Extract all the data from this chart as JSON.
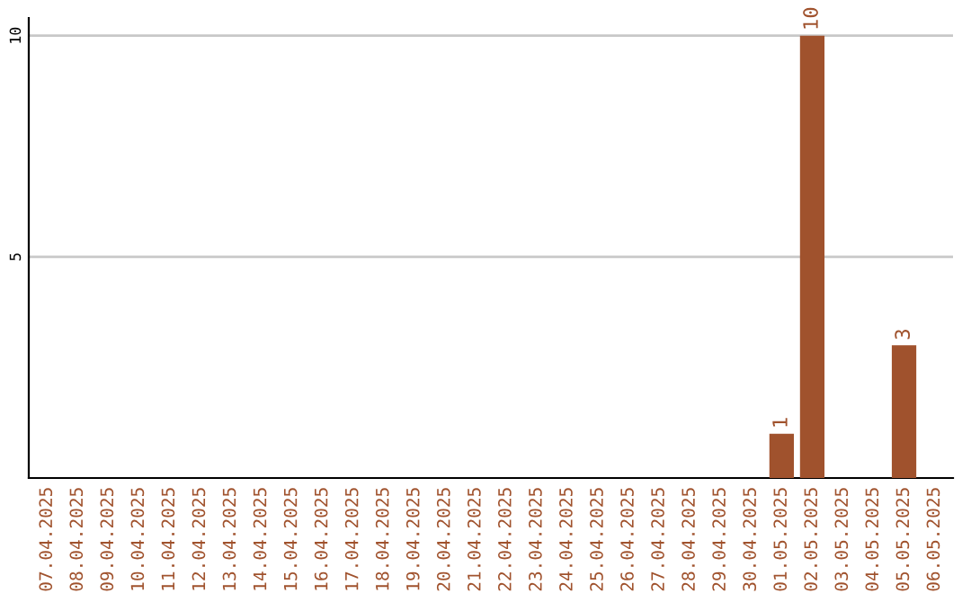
{
  "chart_data": {
    "type": "bar",
    "categories": [
      "07.04.2025",
      "08.04.2025",
      "09.04.2025",
      "10.04.2025",
      "11.04.2025",
      "12.04.2025",
      "13.04.2025",
      "14.04.2025",
      "15.04.2025",
      "16.04.2025",
      "17.04.2025",
      "18.04.2025",
      "19.04.2025",
      "20.04.2025",
      "21.04.2025",
      "22.04.2025",
      "23.04.2025",
      "24.04.2025",
      "25.04.2025",
      "26.04.2025",
      "27.04.2025",
      "28.04.2025",
      "29.04.2025",
      "30.04.2025",
      "01.05.2025",
      "02.05.2025",
      "03.05.2025",
      "04.05.2025",
      "05.05.2025",
      "06.05.2025"
    ],
    "values": [
      0,
      0,
      0,
      0,
      0,
      0,
      0,
      0,
      0,
      0,
      0,
      0,
      0,
      0,
      0,
      0,
      0,
      0,
      0,
      0,
      0,
      0,
      0,
      0,
      1,
      10,
      0,
      0,
      3,
      0
    ],
    "value_labels": [
      null,
      null,
      null,
      null,
      null,
      null,
      null,
      null,
      null,
      null,
      null,
      null,
      null,
      null,
      null,
      null,
      null,
      null,
      null,
      null,
      null,
      null,
      null,
      null,
      "1",
      "10",
      null,
      null,
      "3",
      null
    ],
    "color": "#a0522d",
    "ylim": [
      0,
      10.4
    ],
    "yticks": [
      5,
      10
    ],
    "grid": "y",
    "legend": false
  }
}
